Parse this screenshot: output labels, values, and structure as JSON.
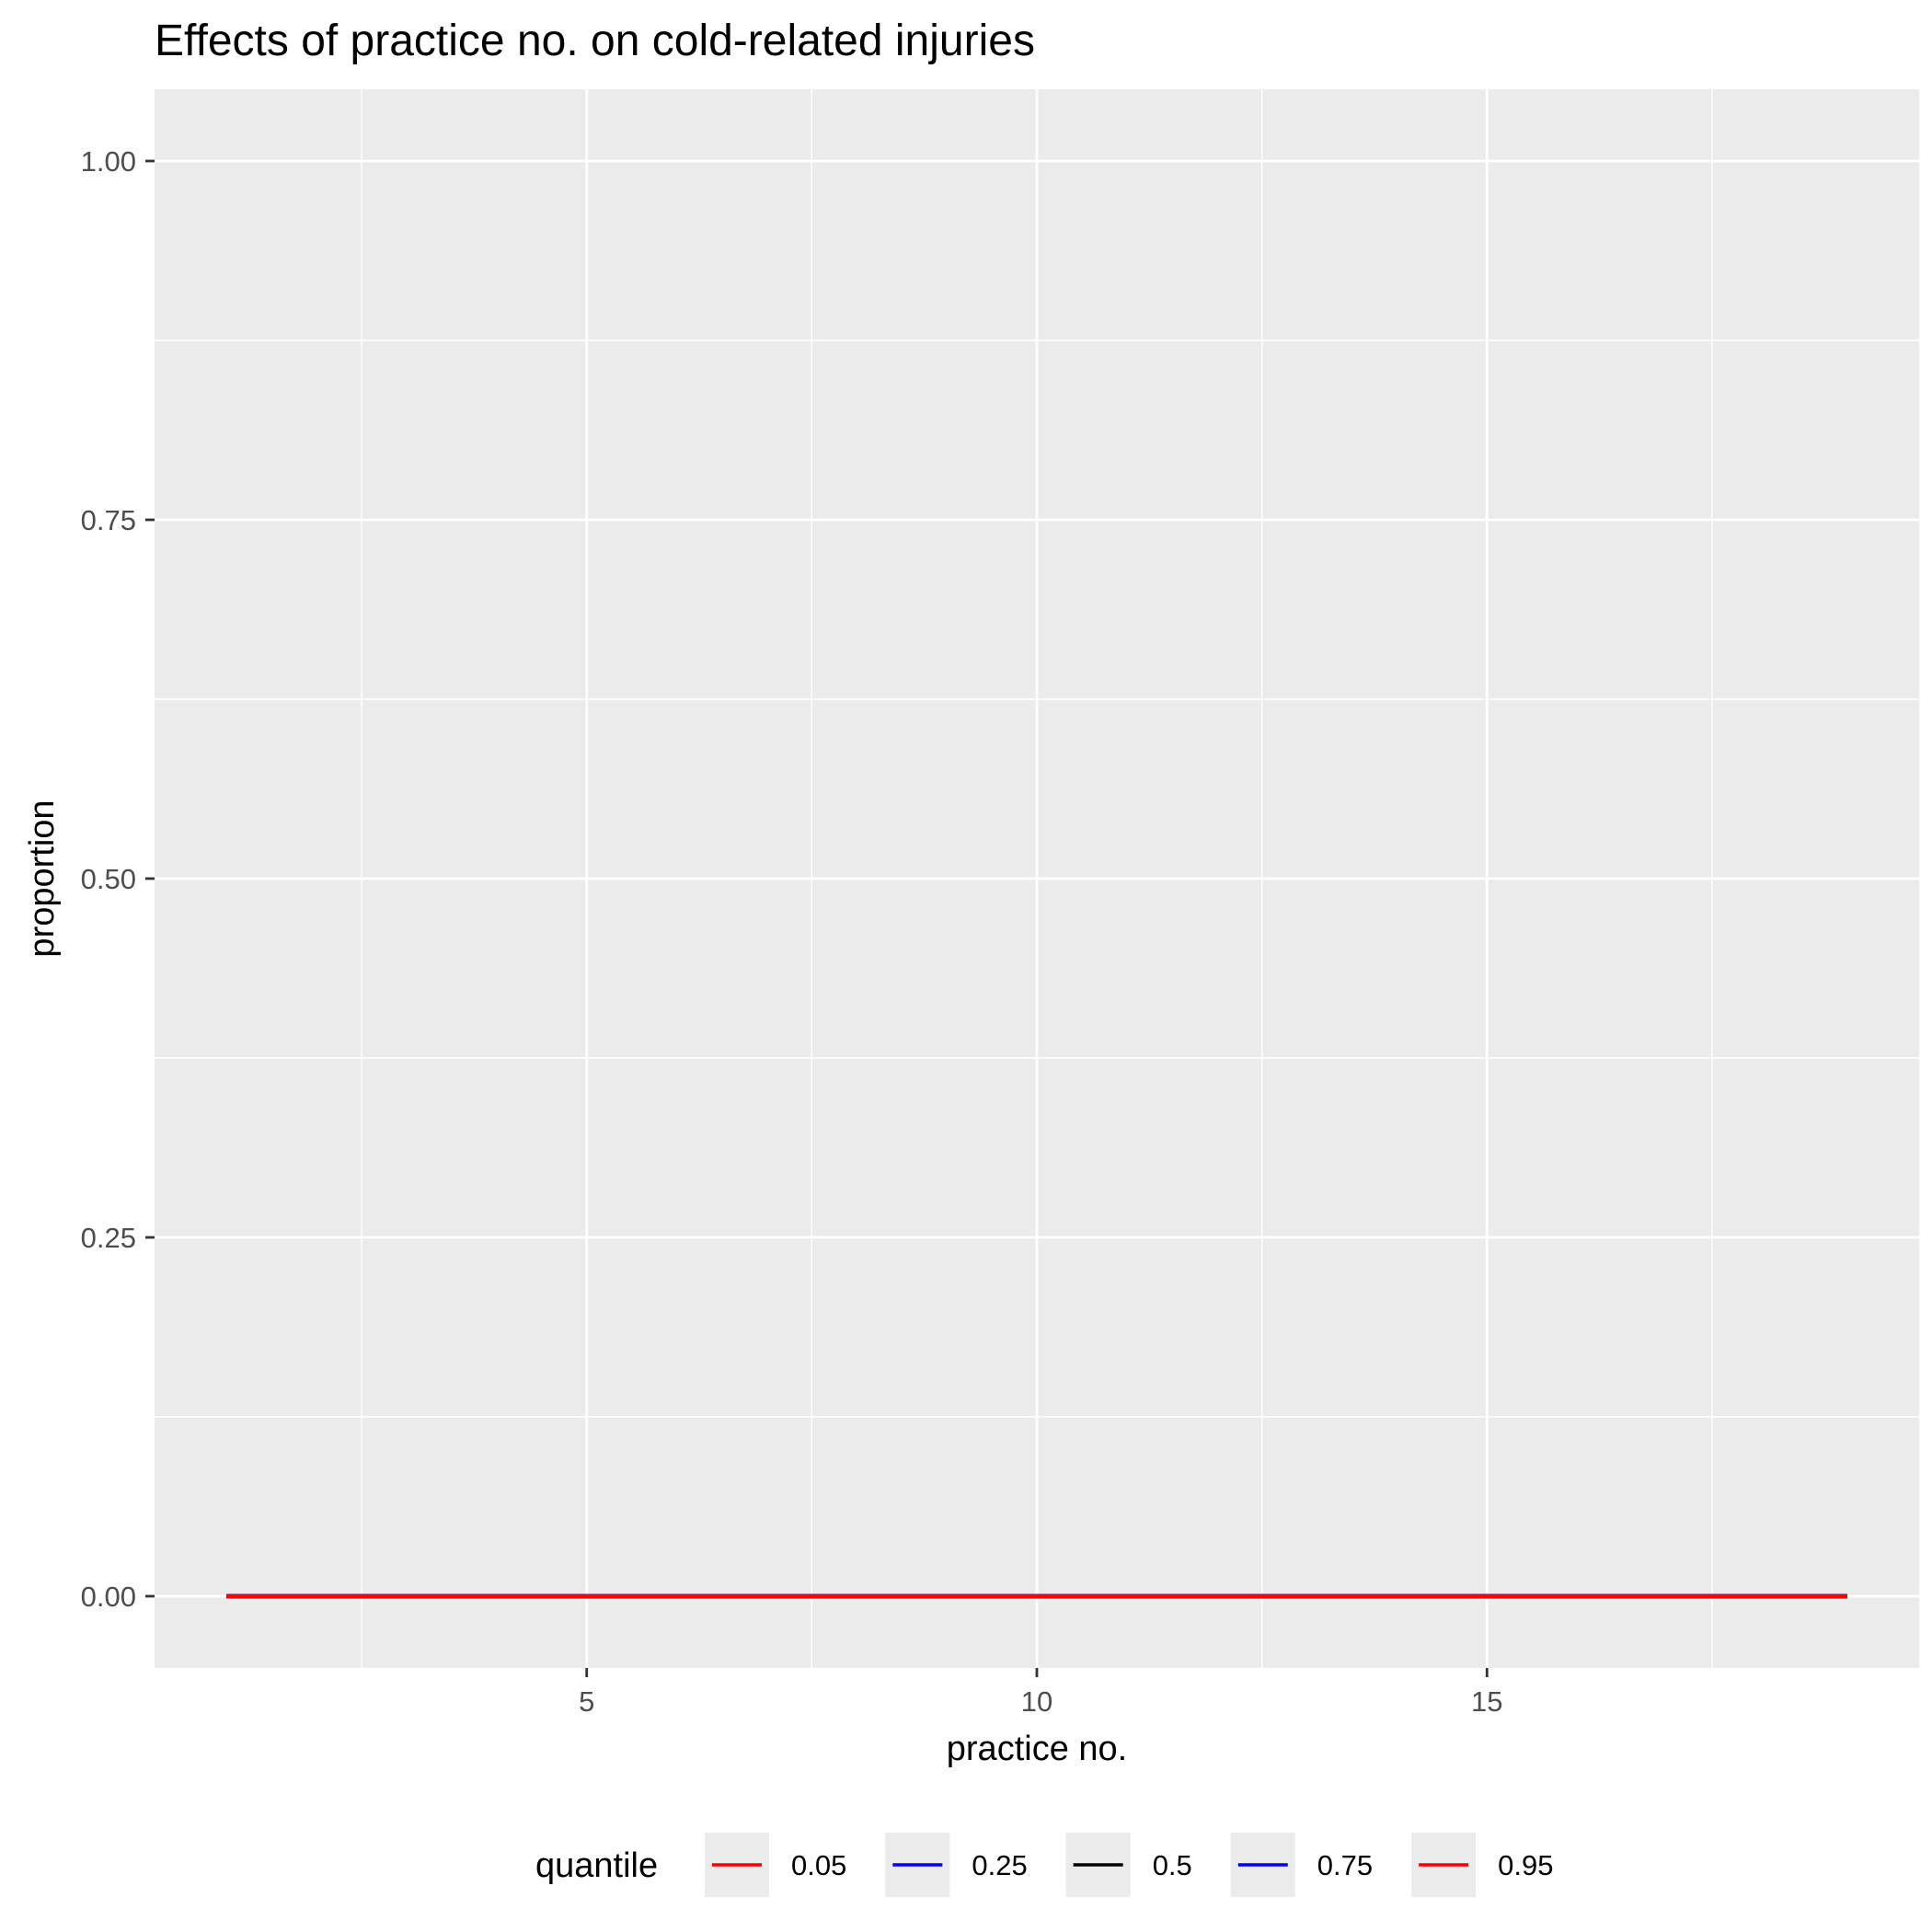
{
  "chart_data": {
    "type": "line",
    "title": "Effects of practice no. on cold-related injuries",
    "xlabel": "practice no.",
    "ylabel": "proportion",
    "xlim": [
      0.2,
      19.8
    ],
    "ylim": [
      -0.05,
      1.05
    ],
    "x_ticks": [
      5,
      10,
      15
    ],
    "x_tick_labels": [
      "5",
      "10",
      "15"
    ],
    "y_ticks": [
      0,
      0.25,
      0.5,
      0.75,
      1
    ],
    "y_tick_labels": [
      "0.00",
      "0.25",
      "0.50",
      "0.75",
      "1.00"
    ],
    "grid": true,
    "legend_position": "bottom",
    "legend_title": "quantile",
    "x": [
      1,
      2,
      3,
      4,
      5,
      6,
      7,
      8,
      9,
      10,
      11,
      12,
      13,
      14,
      15,
      16,
      17,
      18,
      19
    ],
    "series": [
      {
        "name": "0.05",
        "color": "#ff0000",
        "values": [
          0,
          0,
          0,
          0,
          0,
          0,
          0,
          0,
          0,
          0,
          0,
          0,
          0,
          0,
          0,
          0,
          0,
          0,
          0
        ]
      },
      {
        "name": "0.25",
        "color": "#0000ff",
        "values": [
          0,
          0,
          0,
          0,
          0,
          0,
          0,
          0,
          0,
          0,
          0,
          0,
          0,
          0,
          0,
          0,
          0,
          0,
          0
        ]
      },
      {
        "name": "0.5",
        "color": "#000000",
        "values": [
          0,
          0,
          0,
          0,
          0,
          0,
          0,
          0,
          0,
          0,
          0,
          0,
          0,
          0,
          0,
          0,
          0,
          0,
          0
        ]
      },
      {
        "name": "0.75",
        "color": "#0000ff",
        "values": [
          0,
          0,
          0,
          0,
          0,
          0,
          0,
          0,
          0,
          0,
          0,
          0,
          0,
          0,
          0,
          0,
          0,
          0,
          0
        ]
      },
      {
        "name": "0.95",
        "color": "#ff0000",
        "values": [
          0,
          0,
          0,
          0,
          0,
          0,
          0,
          0,
          0,
          0,
          0,
          0,
          0,
          0,
          0,
          0,
          0,
          0,
          0
        ]
      }
    ]
  }
}
